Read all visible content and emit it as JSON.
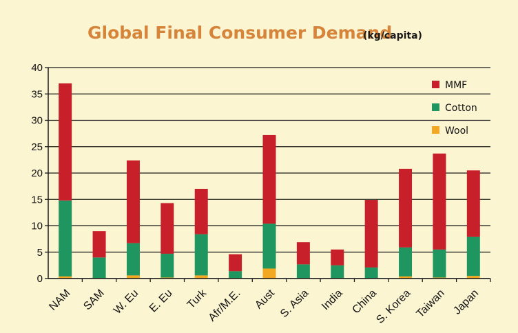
{
  "colors": {
    "background": "#fbf5d2",
    "MMF": "#c8202b",
    "Cotton": "#1f9560",
    "Wool": "#f2a823",
    "title": "#d5843a",
    "grid": "#1a1a1a"
  },
  "chart_data": {
    "type": "bar",
    "stacked": true,
    "title": "Global Final Consumer Demand",
    "subtitle": "(kg/capita)",
    "xlabel": "",
    "ylabel": "",
    "ylim": [
      0,
      40
    ],
    "yticks": [
      "0",
      "5",
      "10",
      "15",
      "20",
      "25",
      "30",
      "35",
      "40"
    ],
    "grid": true,
    "legend_position": "top-right",
    "categories": [
      "NAM",
      "SAM",
      "W. Eu",
      "E. Eu",
      "Turk",
      "Afr/M.E.",
      "Aust",
      "S. Asia",
      "India",
      "China",
      "S. Korea",
      "Taiwan",
      "Japan"
    ],
    "series": [
      {
        "name": "Wool",
        "color": "#f2a823",
        "values": [
          0.4,
          0.1,
          0.6,
          0.2,
          0.6,
          0.1,
          1.9,
          0.1,
          0.1,
          0.1,
          0.4,
          0.2,
          0.5
        ]
      },
      {
        "name": "Cotton",
        "color": "#1f9560",
        "values": [
          14.4,
          3.9,
          6.1,
          4.5,
          7.8,
          1.3,
          8.5,
          2.6,
          2.4,
          2.0,
          5.5,
          5.3,
          7.4
        ]
      },
      {
        "name": "MMF",
        "color": "#c8202b",
        "values": [
          22.2,
          5.0,
          15.7,
          9.6,
          8.6,
          3.2,
          16.8,
          4.2,
          3.0,
          12.8,
          14.9,
          18.2,
          12.6
        ]
      }
    ],
    "legend": [
      "MMF",
      "Cotton",
      "Wool"
    ]
  }
}
